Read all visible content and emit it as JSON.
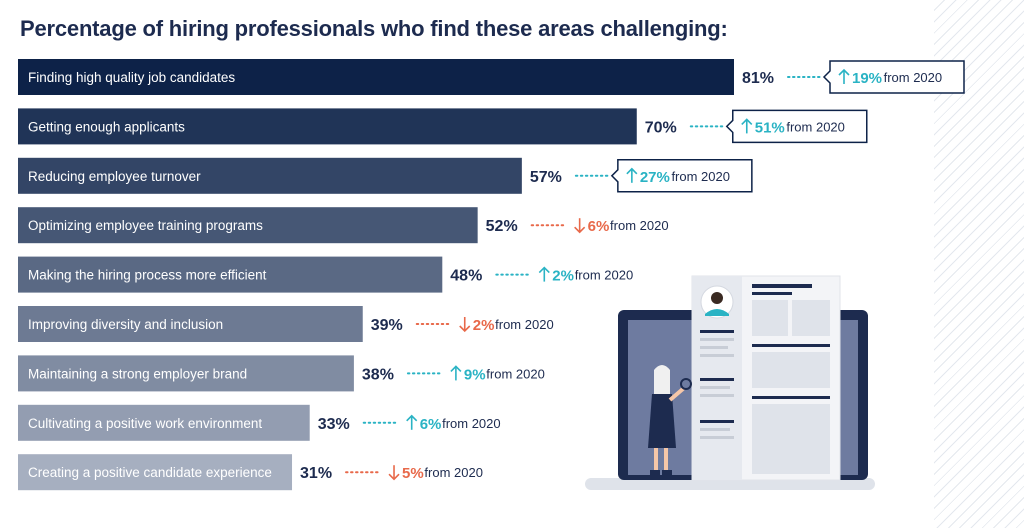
{
  "title": "Percentage of hiring professionals who find these areas challenging:",
  "colors": {
    "navy": "#0d2248",
    "bar_light": "#a6afc0",
    "up": "#2ab3c4",
    "down": "#e8694a",
    "text": "#1d2b4f"
  },
  "chart_data": {
    "type": "bar",
    "orientation": "horizontal",
    "title": "Percentage of hiring professionals who find these areas challenging:",
    "unit": "%",
    "categories": [
      "Finding high quality job candidates",
      "Getting enough applicants",
      "Reducing employee turnover",
      "Optimizing employee training programs",
      "Making the hiring process more efficient",
      "Improving diversity and inclusion",
      "Maintaining a strong employer brand",
      "Cultivating a positive work environment",
      "Creating a positive candidate experience"
    ],
    "values": [
      81,
      70,
      57,
      52,
      48,
      39,
      38,
      33,
      31
    ],
    "value_labels": [
      "81%",
      "70%",
      "57%",
      "52%",
      "48%",
      "39%",
      "38%",
      "33%",
      "31%"
    ],
    "changes": [
      {
        "direction": "up",
        "value": "19%",
        "suffix": "from 2020",
        "boxed": true
      },
      {
        "direction": "up",
        "value": "51%",
        "suffix": "from 2020",
        "boxed": true
      },
      {
        "direction": "up",
        "value": "27%",
        "suffix": "from 2020",
        "boxed": true
      },
      {
        "direction": "down",
        "value": "6%",
        "suffix": "from 2020",
        "boxed": false
      },
      {
        "direction": "up",
        "value": "2%",
        "suffix": "from 2020",
        "boxed": false
      },
      {
        "direction": "down",
        "value": "2%",
        "suffix": "from 2020",
        "boxed": false
      },
      {
        "direction": "up",
        "value": "9%",
        "suffix": "from 2020",
        "boxed": false
      },
      {
        "direction": "up",
        "value": "6%",
        "suffix": "from 2020",
        "boxed": false
      },
      {
        "direction": "down",
        "value": "5%",
        "suffix": "from 2020",
        "boxed": false
      }
    ],
    "xlim": [
      0,
      81
    ]
  }
}
